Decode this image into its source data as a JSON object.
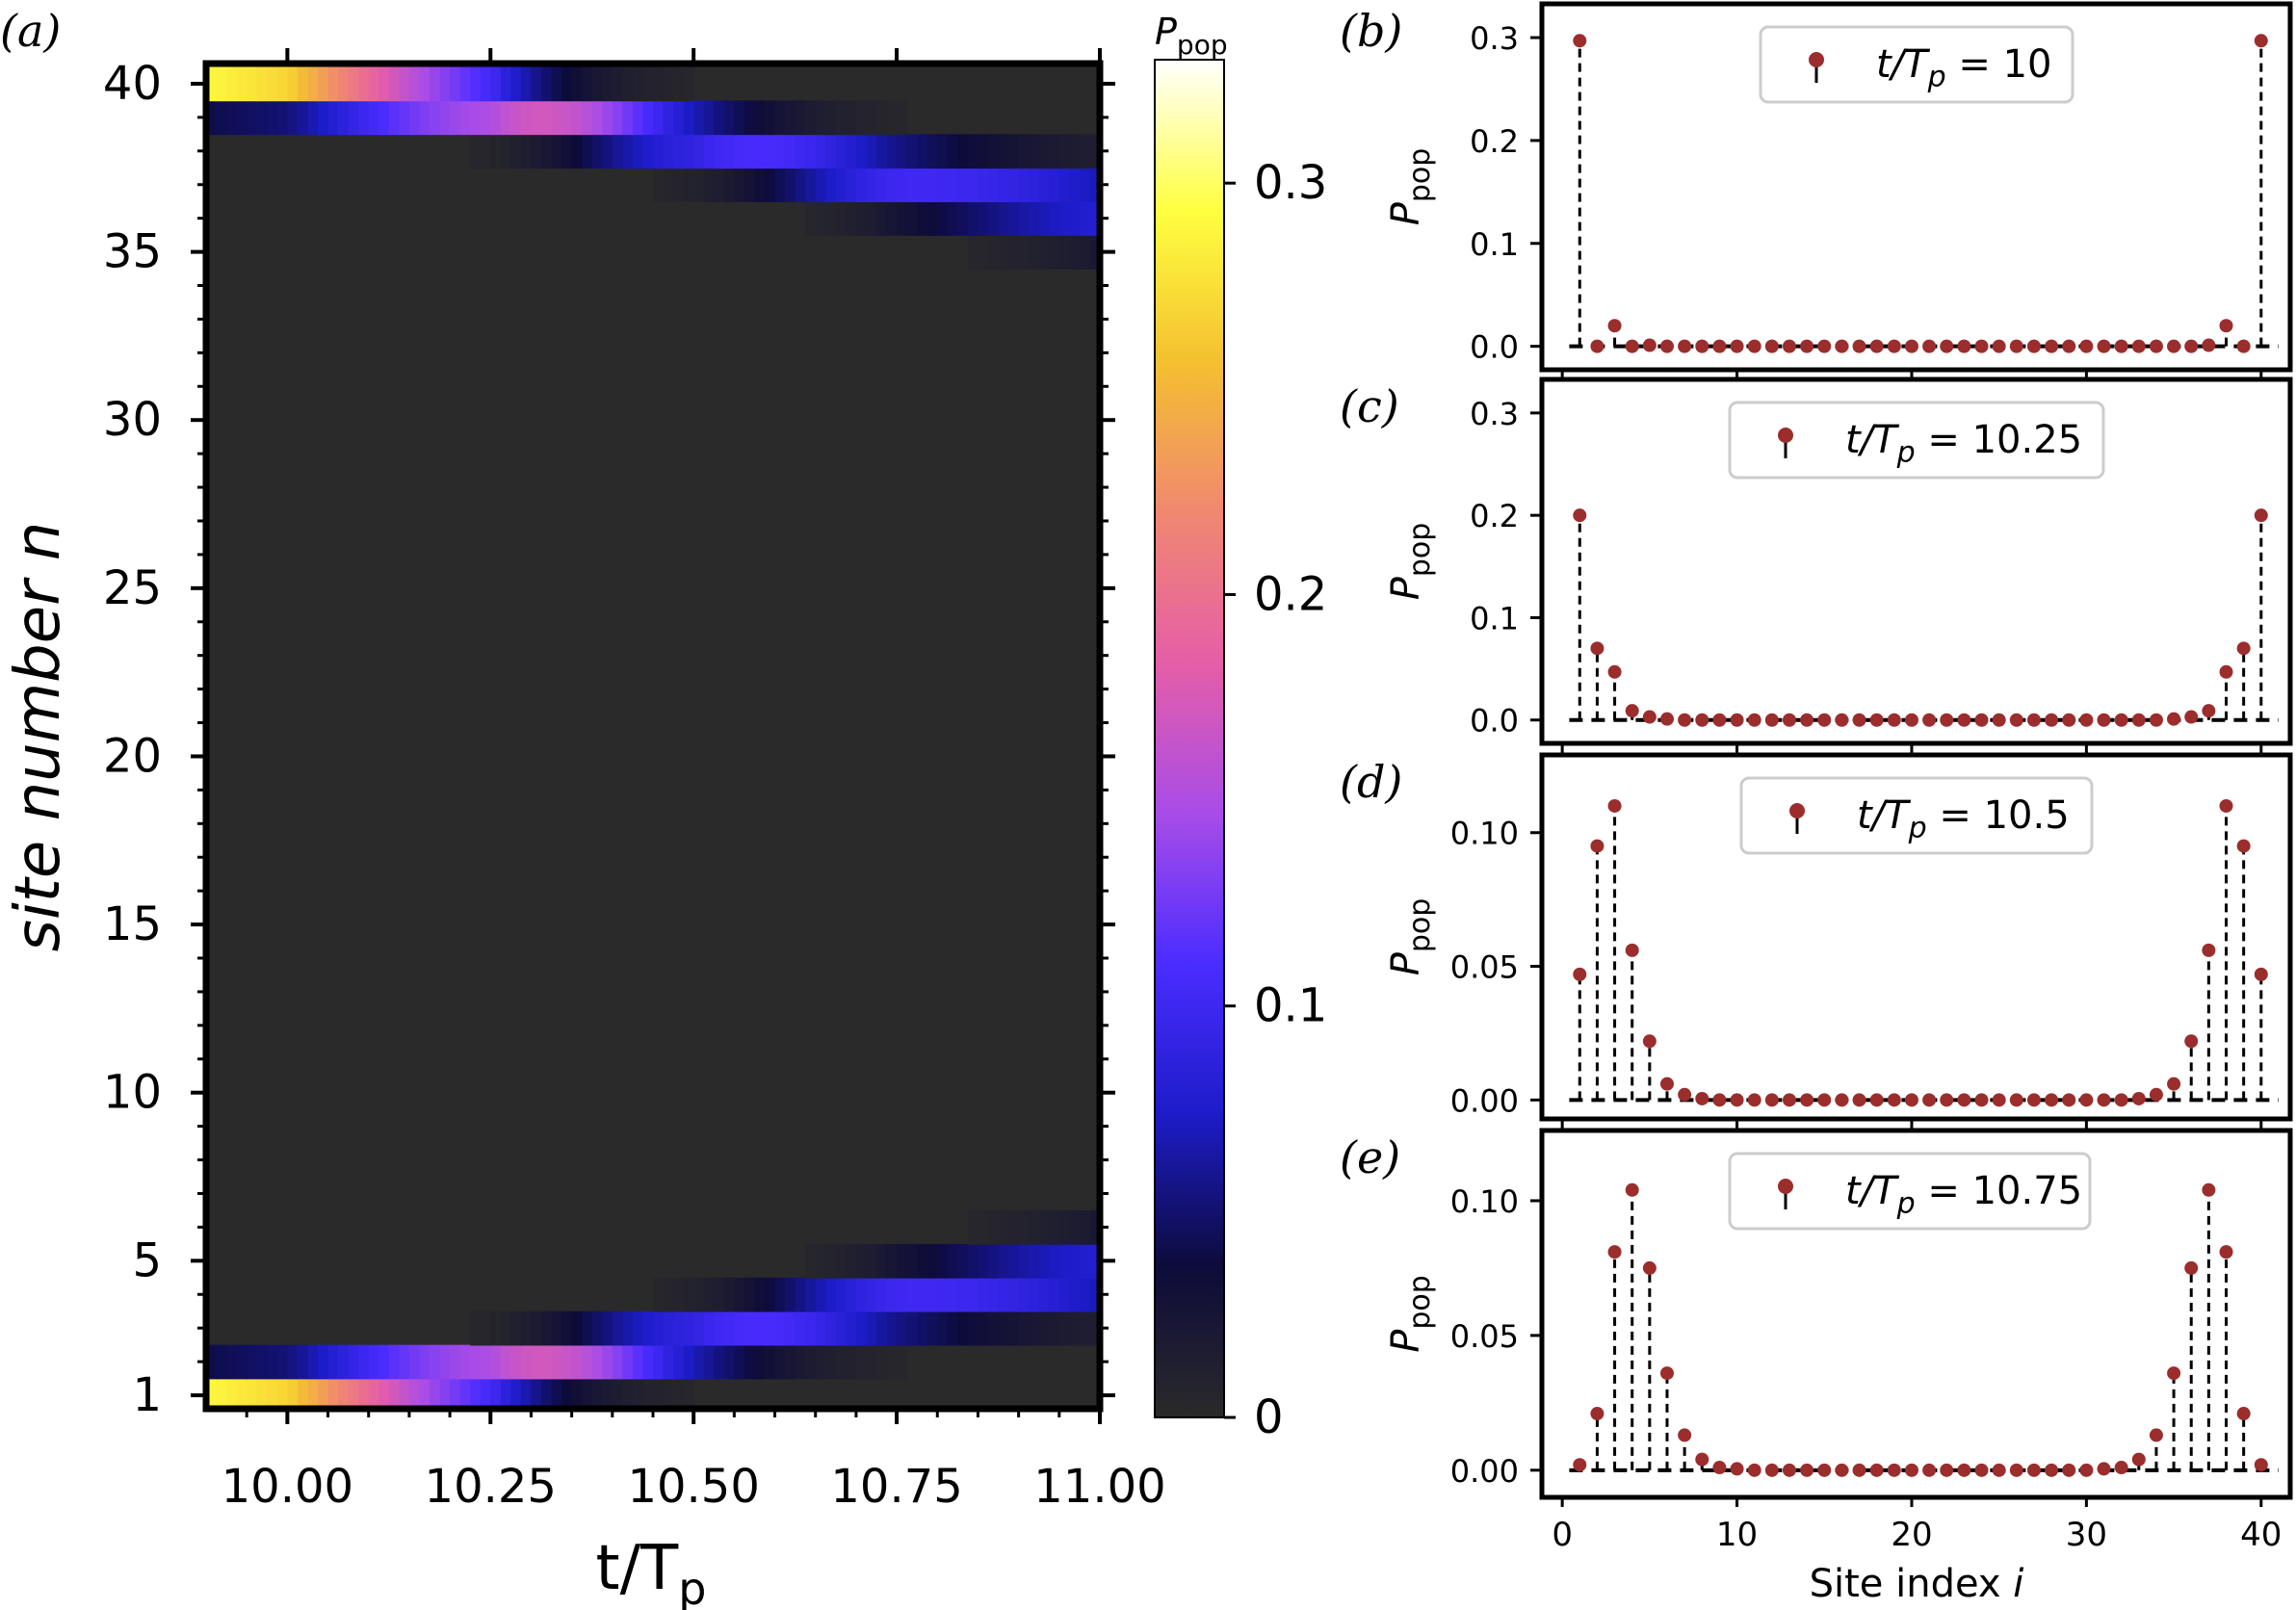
{
  "chart_data": [
    {
      "panel": "(a)",
      "type": "heatmap",
      "xlabel": "t/T",
      "xlabel_sub": "p",
      "ylabel": "site number n",
      "xlim": [
        9.9,
        11.0
      ],
      "ylim": [
        0.6,
        40.6
      ],
      "xticks": [
        "10.00",
        "10.25",
        "10.50",
        "10.75",
        "11.00"
      ],
      "xtick_values": [
        10.0,
        10.25,
        10.5,
        10.75,
        11.0
      ],
      "yticks": [
        "1",
        "5",
        "10",
        "15",
        "20",
        "25",
        "30",
        "35",
        "40"
      ],
      "ytick_values": [
        1,
        5,
        10,
        15,
        20,
        25,
        30,
        35,
        40
      ],
      "colorbar": {
        "label": "P",
        "label_sub": "pop",
        "range": [
          0,
          0.33
        ],
        "ticks": [
          "0",
          "0.1",
          "0.2",
          "0.3"
        ],
        "tick_values": [
          0,
          0.1,
          0.2,
          0.3
        ],
        "colors": [
          "#2a2a2a",
          "#0d0b3a",
          "#1c1cc8",
          "#4a2cff",
          "#a84ce8",
          "#e55ea8",
          "#f08870",
          "#f4c030",
          "#ffff40",
          "#ffffff"
        ]
      },
      "ridge": {
        "t": [
          9.9,
          10.0,
          10.25,
          10.5,
          10.75,
          11.0
        ],
        "edge_site": [
          1.2,
          1.2,
          1.6,
          2.6,
          3.8,
          4.6
        ],
        "peak": [
          0.33,
          0.3,
          0.2,
          0.11,
          0.104,
          0.09
        ]
      }
    },
    {
      "panel": "(b)",
      "type": "stem",
      "legend": "t/T",
      "legend_sub": "p",
      "legend_value": " = 10",
      "ylabel": "P",
      "ylabel_sub": "pop",
      "ylim": [
        -0.02,
        0.33
      ],
      "yticks": [
        "0.0",
        "0.1",
        "0.2",
        "0.3"
      ],
      "ytick_values": [
        0.0,
        0.1,
        0.2,
        0.3
      ],
      "x": [
        1,
        2,
        3,
        4,
        5,
        6,
        7,
        8,
        9,
        10,
        11,
        12,
        13,
        14,
        15,
        16,
        17,
        18,
        19,
        20,
        21,
        22,
        23,
        24,
        25,
        26,
        27,
        28,
        29,
        30,
        31,
        32,
        33,
        34,
        35,
        36,
        37,
        38,
        39,
        40
      ],
      "values": [
        0.297,
        0.0,
        0.02,
        0.0,
        0.001,
        0,
        0,
        0,
        0,
        0,
        0,
        0,
        0,
        0,
        0,
        0,
        0,
        0,
        0,
        0,
        0,
        0,
        0,
        0,
        0,
        0,
        0,
        0,
        0,
        0,
        0,
        0,
        0,
        0,
        0,
        0,
        0.001,
        0.02,
        0.0,
        0.297
      ]
    },
    {
      "panel": "(c)",
      "type": "stem",
      "legend": "t/T",
      "legend_sub": "p",
      "legend_value": " = 10.25",
      "ylabel": "P",
      "ylabel_sub": "pop",
      "ylim": [
        -0.02,
        0.33
      ],
      "yticks": [
        "0.0",
        "0.1",
        "0.2",
        "0.3"
      ],
      "ytick_values": [
        0.0,
        0.1,
        0.2,
        0.3
      ],
      "x": [
        1,
        2,
        3,
        4,
        5,
        6,
        7,
        8,
        9,
        10,
        11,
        12,
        13,
        14,
        15,
        16,
        17,
        18,
        19,
        20,
        21,
        22,
        23,
        24,
        25,
        26,
        27,
        28,
        29,
        30,
        31,
        32,
        33,
        34,
        35,
        36,
        37,
        38,
        39,
        40
      ],
      "values": [
        0.2,
        0.07,
        0.047,
        0.009,
        0.003,
        0.001,
        0,
        0,
        0,
        0,
        0,
        0,
        0,
        0,
        0,
        0,
        0,
        0,
        0,
        0,
        0,
        0,
        0,
        0,
        0,
        0,
        0,
        0,
        0,
        0,
        0,
        0,
        0,
        0,
        0.001,
        0.003,
        0.009,
        0.047,
        0.07,
        0.2
      ]
    },
    {
      "panel": "(d)",
      "type": "stem",
      "legend": "t/T",
      "legend_sub": "p",
      "legend_value": " = 10.5",
      "ylabel": "P",
      "ylabel_sub": "pop",
      "ylim": [
        -0.006,
        0.128
      ],
      "yticks": [
        "0.00",
        "0.05",
        "0.10"
      ],
      "ytick_values": [
        0.0,
        0.05,
        0.1
      ],
      "x": [
        1,
        2,
        3,
        4,
        5,
        6,
        7,
        8,
        9,
        10,
        11,
        12,
        13,
        14,
        15,
        16,
        17,
        18,
        19,
        20,
        21,
        22,
        23,
        24,
        25,
        26,
        27,
        28,
        29,
        30,
        31,
        32,
        33,
        34,
        35,
        36,
        37,
        38,
        39,
        40
      ],
      "values": [
        0.047,
        0.095,
        0.11,
        0.056,
        0.022,
        0.006,
        0.002,
        0.0005,
        0,
        0,
        0,
        0,
        0,
        0,
        0,
        0,
        0,
        0,
        0,
        0,
        0,
        0,
        0,
        0,
        0,
        0,
        0,
        0,
        0,
        0,
        0,
        0,
        0.0005,
        0.002,
        0.006,
        0.022,
        0.056,
        0.11,
        0.095,
        0.047
      ]
    },
    {
      "panel": "(e)",
      "type": "stem",
      "legend": "t/T",
      "legend_sub": "p",
      "legend_value": " = 10.75",
      "ylabel": "P",
      "ylabel_sub": "pop",
      "ylim": [
        -0.009,
        0.125
      ],
      "yticks": [
        "0.00",
        "0.05",
        "0.10"
      ],
      "ytick_values": [
        0.0,
        0.05,
        0.1
      ],
      "xlabel": "Site index ",
      "xlabel_var": "i",
      "xticks": [
        "0",
        "10",
        "20",
        "30",
        "40"
      ],
      "xtick_values": [
        0,
        10,
        20,
        30,
        40
      ],
      "x": [
        1,
        2,
        3,
        4,
        5,
        6,
        7,
        8,
        9,
        10,
        11,
        12,
        13,
        14,
        15,
        16,
        17,
        18,
        19,
        20,
        21,
        22,
        23,
        24,
        25,
        26,
        27,
        28,
        29,
        30,
        31,
        32,
        33,
        34,
        35,
        36,
        37,
        38,
        39,
        40
      ],
      "values": [
        0.002,
        0.021,
        0.081,
        0.104,
        0.075,
        0.036,
        0.013,
        0.004,
        0.001,
        0.0005,
        0,
        0,
        0,
        0,
        0,
        0,
        0,
        0,
        0,
        0,
        0,
        0,
        0,
        0,
        0,
        0,
        0,
        0,
        0,
        0,
        0.0005,
        0.001,
        0.004,
        0.013,
        0.036,
        0.075,
        0.104,
        0.081,
        0.021,
        0.002
      ]
    }
  ],
  "marker_color": "#9b2d2d"
}
